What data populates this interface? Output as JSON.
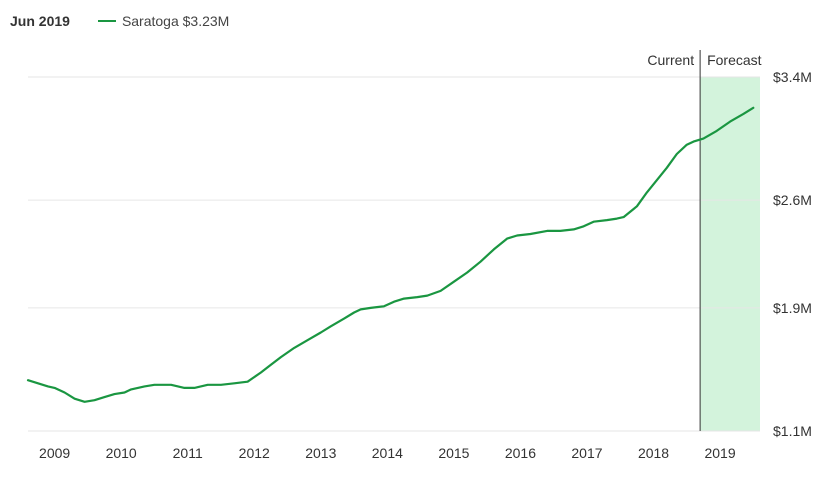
{
  "legend": {
    "date": "Jun 2019",
    "series_label": "Saratoga $3.23M"
  },
  "colors": {
    "line": "#1a9641",
    "forecast_fill": "#d3f3dc",
    "grid": "#e6e6e6",
    "divider": "#333333"
  },
  "chart_data": {
    "type": "line",
    "title": "",
    "xlabel": "",
    "ylabel": "",
    "x_ticks": [
      "2009",
      "2010",
      "2011",
      "2012",
      "2013",
      "2014",
      "2015",
      "2016",
      "2017",
      "2018",
      "2019"
    ],
    "y_ticks": [
      "$1.1M",
      "$1.9M",
      "$2.6M",
      "$3.4M"
    ],
    "y_tick_values": [
      1.1,
      1.9,
      2.6,
      3.4
    ],
    "xlim": [
      2008.6,
      2019.6
    ],
    "ylim": [
      1.1,
      3.4
    ],
    "grid": true,
    "y_axis_position": "right",
    "current_label": "Current",
    "forecast_label": "Forecast",
    "forecast_start": 2018.7,
    "series": [
      {
        "name": "Saratoga",
        "x": [
          2008.6,
          2008.75,
          2008.9,
          2009.0,
          2009.15,
          2009.3,
          2009.45,
          2009.6,
          2009.75,
          2009.9,
          2010.05,
          2010.15,
          2010.35,
          2010.5,
          2010.75,
          2010.95,
          2011.1,
          2011.3,
          2011.5,
          2011.7,
          2011.9,
          2012.1,
          2012.25,
          2012.4,
          2012.6,
          2012.8,
          2013.0,
          2013.15,
          2013.35,
          2013.5,
          2013.6,
          2013.75,
          2013.95,
          2014.1,
          2014.25,
          2014.45,
          2014.6,
          2014.8,
          2015.0,
          2015.2,
          2015.4,
          2015.6,
          2015.8,
          2015.95,
          2016.15,
          2016.4,
          2016.6,
          2016.8,
          2016.95,
          2017.1,
          2017.3,
          2017.45,
          2017.55,
          2017.75,
          2017.9,
          2018.05,
          2018.2,
          2018.35,
          2018.5,
          2018.6,
          2018.75,
          2018.95,
          2019.15,
          2019.35,
          2019.5
        ],
        "values": [
          1.43,
          1.41,
          1.39,
          1.38,
          1.35,
          1.31,
          1.29,
          1.3,
          1.32,
          1.34,
          1.35,
          1.37,
          1.39,
          1.4,
          1.4,
          1.38,
          1.38,
          1.4,
          1.4,
          1.41,
          1.42,
          1.48,
          1.53,
          1.58,
          1.64,
          1.69,
          1.74,
          1.78,
          1.83,
          1.87,
          1.89,
          1.9,
          1.91,
          1.94,
          1.96,
          1.97,
          1.98,
          2.01,
          2.07,
          2.13,
          2.2,
          2.28,
          2.35,
          2.37,
          2.38,
          2.4,
          2.4,
          2.41,
          2.43,
          2.46,
          2.47,
          2.48,
          2.49,
          2.56,
          2.65,
          2.73,
          2.81,
          2.9,
          2.96,
          2.98,
          3.0,
          3.05,
          3.11,
          3.16,
          3.2
        ]
      }
    ]
  }
}
